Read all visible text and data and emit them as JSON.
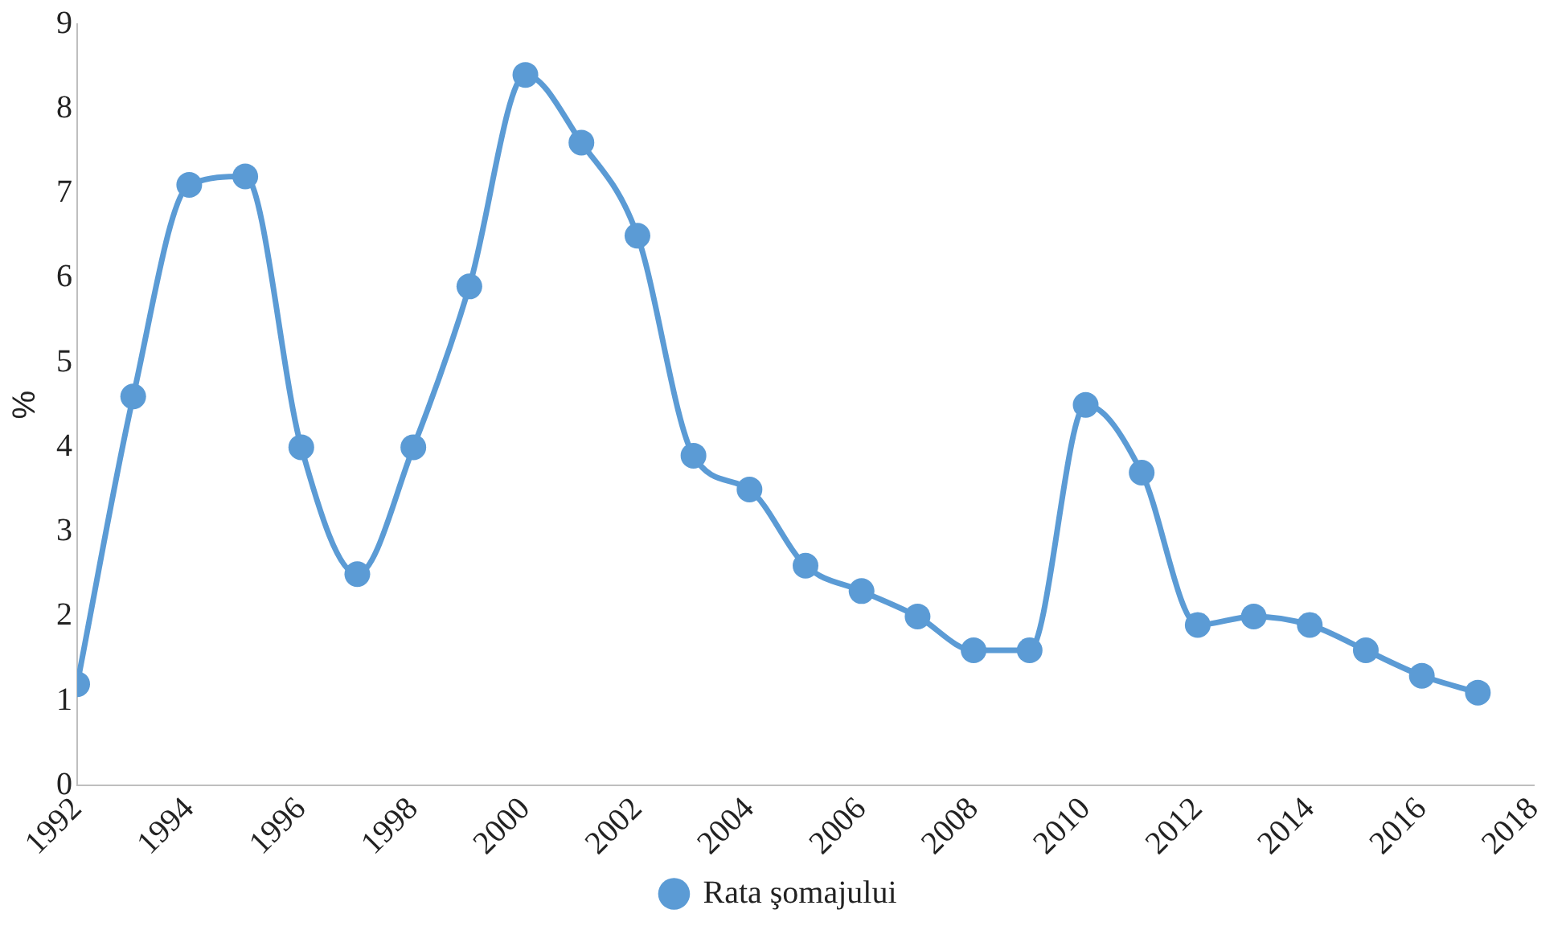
{
  "chart_data": {
    "type": "line",
    "ylabel": "%",
    "x": [
      1992,
      1993,
      1994,
      1995,
      1996,
      1997,
      1998,
      1999,
      2000,
      2001,
      2002,
      2003,
      2004,
      2005,
      2006,
      2007,
      2008,
      2009,
      2010,
      2011,
      2012,
      2013,
      2014,
      2015,
      2016,
      2017
    ],
    "series": [
      {
        "name": "Rata şomajului",
        "color": "#5b9bd5",
        "values": [
          1.2,
          4.6,
          7.1,
          7.2,
          4.0,
          2.5,
          4.0,
          5.9,
          8.4,
          7.6,
          6.5,
          3.9,
          3.5,
          2.6,
          2.3,
          2.0,
          1.6,
          1.6,
          4.5,
          3.7,
          1.9,
          2.0,
          1.9,
          1.6,
          1.3,
          1.1
        ]
      }
    ],
    "xlim": [
      1992,
      2018
    ],
    "xticks": [
      1992,
      1994,
      1996,
      1998,
      2000,
      2002,
      2004,
      2006,
      2008,
      2010,
      2012,
      2014,
      2016,
      2018
    ],
    "ylim": [
      0,
      9
    ],
    "yticks": [
      0,
      1,
      2,
      3,
      4,
      5,
      6,
      7,
      8,
      9
    ],
    "grid": false,
    "legend": "bottom",
    "marker": "circle",
    "line_style": "solid"
  }
}
